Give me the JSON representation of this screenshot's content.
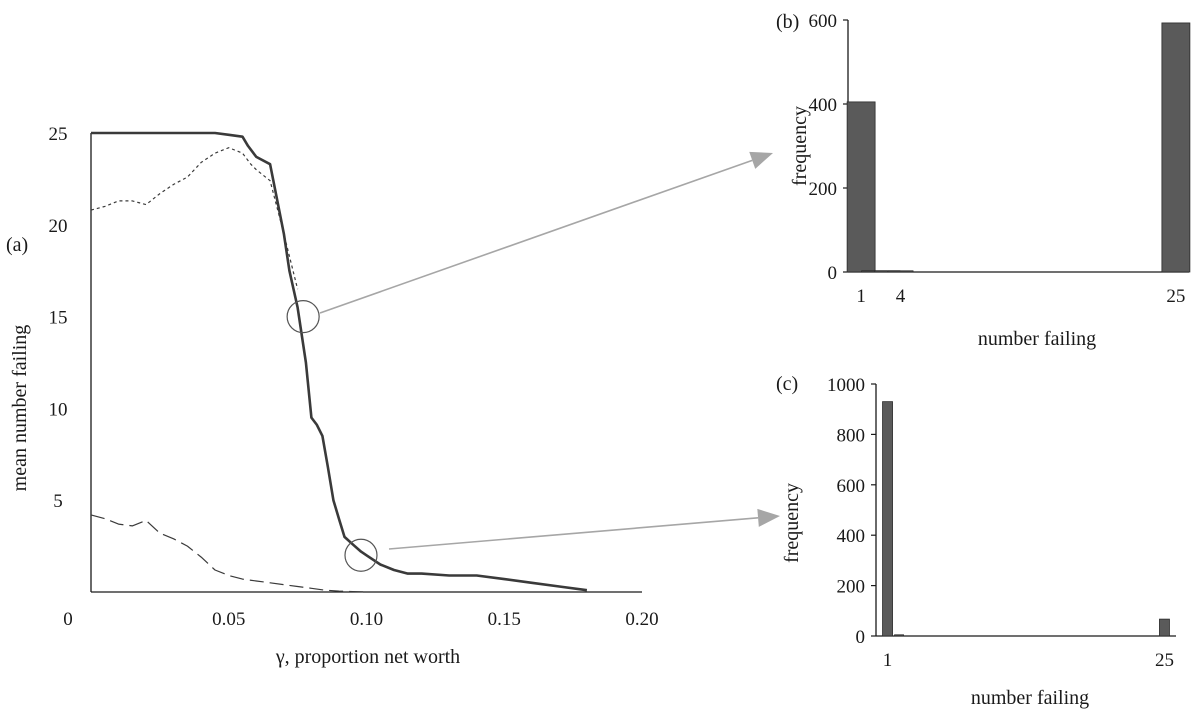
{
  "colors": {
    "curve": "#3a3a3a",
    "bar": "#5a5a5a",
    "arrow": "#a6a6a6",
    "axis": "#1a1a1a"
  },
  "chart_data": [
    {
      "panel": "(a)",
      "type": "line",
      "xlabel": "γ, proportion net worth",
      "ylabel": "mean number failing",
      "xlim": [
        0,
        0.2
      ],
      "ylim": [
        0,
        25
      ],
      "xticks": [
        {
          "v": 0,
          "label": "0"
        },
        {
          "v": 0.05,
          "label": "0.05"
        },
        {
          "v": 0.1,
          "label": "0.10"
        },
        {
          "v": 0.15,
          "label": "0.15"
        },
        {
          "v": 0.2,
          "label": "0.20"
        }
      ],
      "yticks": [
        {
          "v": 5,
          "label": "5"
        },
        {
          "v": 10,
          "label": "10"
        },
        {
          "v": 15,
          "label": "15"
        },
        {
          "v": 20,
          "label": "20"
        },
        {
          "v": 25,
          "label": "25"
        }
      ],
      "series": [
        {
          "style": "solid",
          "x": [
            0,
            0.01,
            0.02,
            0.03,
            0.04,
            0.045,
            0.05,
            0.055,
            0.057,
            0.06,
            0.065,
            0.07,
            0.072,
            0.075,
            0.078,
            0.08,
            0.082,
            0.084,
            0.086,
            0.088,
            0.09,
            0.092,
            0.095,
            0.098,
            0.1,
            0.105,
            0.11,
            0.115,
            0.12,
            0.13,
            0.14,
            0.15,
            0.16,
            0.17,
            0.18
          ],
          "y": [
            25,
            25,
            25,
            25,
            25,
            25,
            24.9,
            24.8,
            24.3,
            23.7,
            23.3,
            19.5,
            17.5,
            15.5,
            12.5,
            9.5,
            9.1,
            8.5,
            6.8,
            5.0,
            4.0,
            3.0,
            2.6,
            2.2,
            2.0,
            1.5,
            1.2,
            1.0,
            1.0,
            0.9,
            0.9,
            0.7,
            0.5,
            0.3,
            0.1
          ]
        },
        {
          "style": "dotted",
          "x": [
            0,
            0.005,
            0.01,
            0.015,
            0.02,
            0.025,
            0.03,
            0.035,
            0.04,
            0.045,
            0.05,
            0.055,
            0.058,
            0.06,
            0.065,
            0.07,
            0.075
          ],
          "y": [
            20.8,
            21.0,
            21.3,
            21.3,
            21.1,
            21.7,
            22.2,
            22.6,
            23.4,
            23.9,
            24.2,
            23.9,
            23.3,
            23.0,
            22.4,
            19.5,
            16.5
          ]
        },
        {
          "style": "dashed",
          "x": [
            0,
            0.005,
            0.01,
            0.015,
            0.02,
            0.025,
            0.03,
            0.035,
            0.04,
            0.045,
            0.05,
            0.055,
            0.06,
            0.065,
            0.07,
            0.075,
            0.08,
            0.085,
            0.09,
            0.095,
            0.1
          ],
          "y": [
            4.2,
            4.0,
            3.7,
            3.6,
            3.9,
            3.2,
            2.9,
            2.5,
            1.9,
            1.2,
            0.9,
            0.7,
            0.6,
            0.5,
            0.4,
            0.3,
            0.2,
            0.1,
            0.05,
            0.02,
            0
          ]
        }
      ],
      "markers": [
        {
          "x": 0.077,
          "y": 15
        },
        {
          "x": 0.098,
          "y": 2
        }
      ]
    },
    {
      "panel": "(b)",
      "type": "bar",
      "xlabel": "number failing",
      "ylabel": "frequency",
      "xlim": [
        0,
        26
      ],
      "ylim": [
        0,
        600
      ],
      "xticks": [
        {
          "v": 1,
          "label": "1"
        },
        {
          "v": 4,
          "label": "4"
        },
        {
          "v": 25,
          "label": "25"
        }
      ],
      "yticks": [
        {
          "v": 0,
          "label": "0"
        },
        {
          "v": 200,
          "label": "200"
        },
        {
          "v": 400,
          "label": "400"
        },
        {
          "v": 600,
          "label": "600"
        }
      ],
      "x": [
        1,
        2,
        3,
        4,
        25
      ],
      "values": [
        405,
        2,
        3,
        2,
        593
      ]
    },
    {
      "panel": "(c)",
      "type": "bar",
      "xlabel": "number failing",
      "ylabel": "frequency",
      "xlim": [
        0,
        26
      ],
      "ylim": [
        0,
        1000
      ],
      "xticks": [
        {
          "v": 1,
          "label": "1"
        },
        {
          "v": 25,
          "label": "25"
        }
      ],
      "yticks": [
        {
          "v": 0,
          "label": "0"
        },
        {
          "v": 200,
          "label": "200"
        },
        {
          "v": 400,
          "label": "400"
        },
        {
          "v": 600,
          "label": "600"
        },
        {
          "v": 800,
          "label": "800"
        },
        {
          "v": 1000,
          "label": "1000"
        }
      ],
      "x": [
        1,
        2,
        25
      ],
      "values": [
        930,
        3,
        67
      ]
    }
  ]
}
